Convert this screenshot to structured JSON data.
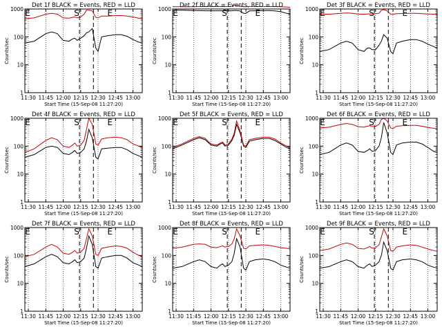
{
  "figure": {
    "background": "#ffffff",
    "events_color": "#000000",
    "lld_color": "#cc0000",
    "marker_S": "S",
    "marker_E": "E"
  },
  "chart_data": [
    {
      "type": "line",
      "title": "Det 1f BLACK = Events, RED = LLD",
      "xlabel": "Start Time (15-Sep-08 11:27:20)",
      "ylabel": "Counts/sec",
      "yscale": "log",
      "ylim": [
        1,
        1000
      ],
      "ytick_labels": [
        "1",
        "10",
        "100",
        "1000"
      ],
      "xlim": [
        "11:27",
        "13:08"
      ],
      "xtick_labels": [
        "11:30",
        "11:45",
        "12:00",
        "12:15",
        "12:30",
        "12:45",
        "13:00"
      ],
      "x": [
        "11:27",
        "11:35",
        "11:45",
        "11:50",
        "11:55",
        "12:00",
        "12:05",
        "12:08",
        "12:10",
        "12:12",
        "12:15",
        "12:18",
        "12:20",
        "12:22",
        "12:25",
        "12:28",
        "12:30",
        "12:33",
        "12:38",
        "12:45",
        "12:50",
        "12:55",
        "13:00",
        "13:05",
        "13:08"
      ],
      "series": [
        {
          "name": "BLACK = Events",
          "values": [
            60,
            70,
            130,
            150,
            130,
            75,
            70,
            85,
            90,
            75,
            90,
            110,
            140,
            150,
            200,
            40,
            30,
            100,
            110,
            120,
            120,
            105,
            80,
            65,
            60
          ]
        },
        {
          "name": "RED = LLD",
          "values": [
            450,
            480,
            650,
            700,
            650,
            480,
            470,
            500,
            520,
            480,
            520,
            650,
            900,
            900,
            850,
            500,
            480,
            560,
            560,
            580,
            580,
            560,
            520,
            470,
            450
          ]
        }
      ]
    },
    {
      "type": "line",
      "title": "Det 2f BLACK = Events, RED = LLD",
      "xlabel": "Start Time (15-Sep-08 11:27:20)",
      "ylabel": "Counts/sec",
      "yscale": "log",
      "ylim": [
        1,
        1000
      ],
      "ytick_labels": [
        "1",
        "10",
        "100",
        "1000"
      ],
      "xlim": [
        "11:27",
        "13:08"
      ],
      "xtick_labels": [
        "11:30",
        "11:45",
        "12:00",
        "12:15",
        "12:30",
        "12:45",
        "13:00"
      ],
      "x": [
        "11:27",
        "11:35",
        "11:45",
        "11:50",
        "11:55",
        "12:00",
        "12:05",
        "12:08",
        "12:10",
        "12:12",
        "12:15",
        "12:18",
        "12:20",
        "12:22",
        "12:25",
        "12:28",
        "12:30",
        "12:33",
        "12:38",
        "12:45",
        "12:50",
        "12:55",
        "13:00",
        "13:05",
        "13:08"
      ],
      "series": [
        {
          "name": "BLACK = Events",
          "values": [
            900,
            900,
            880,
            870,
            860,
            860,
            860,
            860,
            860,
            860,
            860,
            860,
            880,
            880,
            850,
            700,
            700,
            850,
            860,
            870,
            870,
            850,
            800,
            700,
            650
          ]
        },
        {
          "name": "RED = LLD",
          "values": [
            1200,
            1200,
            1210,
            1220,
            1220,
            1220,
            1220,
            1220,
            1220,
            1220,
            1230,
            1250,
            1400,
            1350,
            1250,
            1200,
            1200,
            1230,
            1230,
            1230,
            1220,
            1220,
            1200,
            1180,
            1150
          ]
        }
      ]
    },
    {
      "type": "line",
      "title": "Det 3f BLACK = Events, RED = LLD",
      "xlabel": "Start Time (15-Sep-08 11:27:20)",
      "ylabel": "Counts/sec",
      "yscale": "log",
      "ylim": [
        1,
        1000
      ],
      "ytick_labels": [
        "1",
        "10",
        "100",
        "1000"
      ],
      "xlim": [
        "11:27",
        "13:08"
      ],
      "xtick_labels": [
        "11:30",
        "11:45",
        "12:00",
        "12:15",
        "12:30",
        "12:45",
        "13:00"
      ],
      "x": [
        "11:27",
        "11:35",
        "11:45",
        "11:50",
        "11:55",
        "12:00",
        "12:05",
        "12:08",
        "12:10",
        "12:12",
        "12:15",
        "12:18",
        "12:20",
        "12:22",
        "12:25",
        "12:28",
        "12:30",
        "12:33",
        "12:38",
        "12:45",
        "12:50",
        "12:55",
        "13:00",
        "13:05",
        "13:08"
      ],
      "series": [
        {
          "name": "BLACK = Events",
          "values": [
            30,
            35,
            60,
            70,
            60,
            35,
            30,
            40,
            40,
            35,
            35,
            50,
            70,
            120,
            90,
            30,
            25,
            60,
            70,
            80,
            80,
            70,
            55,
            45,
            40
          ]
        },
        {
          "name": "RED = LLD",
          "values": [
            650,
            650,
            700,
            720,
            700,
            660,
            650,
            660,
            670,
            660,
            680,
            700,
            900,
            950,
            850,
            650,
            640,
            680,
            690,
            700,
            700,
            680,
            660,
            650,
            640
          ]
        }
      ]
    },
    {
      "type": "line",
      "title": "Det 4f BLACK = Events, RED = LLD",
      "xlabel": "Start Time (15-Sep-08 11:27:20)",
      "ylabel": "Counts/sec",
      "yscale": "log",
      "ylim": [
        1,
        1000
      ],
      "ytick_labels": [
        "1",
        "10",
        "100",
        "1000"
      ],
      "xlim": [
        "11:27",
        "13:08"
      ],
      "xtick_labels": [
        "11:30",
        "11:45",
        "12:00",
        "12:15",
        "12:30",
        "12:45",
        "13:00"
      ],
      "x": [
        "11:27",
        "11:35",
        "11:45",
        "11:50",
        "11:55",
        "12:00",
        "12:05",
        "12:08",
        "12:10",
        "12:12",
        "12:15",
        "12:18",
        "12:20",
        "12:22",
        "12:25",
        "12:28",
        "12:30",
        "12:33",
        "12:38",
        "12:45",
        "12:50",
        "12:55",
        "13:00",
        "13:05",
        "13:08"
      ],
      "series": [
        {
          "name": "BLACK = Events",
          "values": [
            40,
            50,
            90,
            100,
            90,
            55,
            50,
            60,
            70,
            55,
            60,
            80,
            150,
            400,
            200,
            40,
            35,
            80,
            85,
            90,
            90,
            75,
            55,
            45,
            40
          ]
        },
        {
          "name": "RED = LLD",
          "values": [
            60,
            80,
            160,
            200,
            170,
            100,
            90,
            110,
            130,
            100,
            110,
            160,
            400,
            1000,
            600,
            120,
            110,
            180,
            200,
            210,
            200,
            170,
            120,
            100,
            90
          ]
        }
      ]
    },
    {
      "type": "line",
      "title": "Det 5f BLACK = Events, RED = LLD",
      "xlabel": "Start Time (15-Sep-08 11:27:20)",
      "ylabel": "Counts/sec",
      "yscale": "log",
      "ylim": [
        1,
        1000
      ],
      "ytick_labels": [
        "1",
        "10",
        "100",
        "1000"
      ],
      "xlim": [
        "11:27",
        "13:08"
      ],
      "xtick_labels": [
        "11:30",
        "11:45",
        "12:00",
        "12:15",
        "12:30",
        "12:45",
        "13:00"
      ],
      "x": [
        "11:27",
        "11:35",
        "11:45",
        "11:50",
        "11:55",
        "12:00",
        "12:05",
        "12:08",
        "12:10",
        "12:12",
        "12:15",
        "12:18",
        "12:20",
        "12:22",
        "12:25",
        "12:28",
        "12:30",
        "12:33",
        "12:38",
        "12:45",
        "12:50",
        "12:55",
        "13:00",
        "13:05",
        "13:08"
      ],
      "series": [
        {
          "name": "BLACK = Events",
          "values": [
            80,
            110,
            170,
            200,
            170,
            110,
            100,
            120,
            130,
            100,
            110,
            160,
            250,
            600,
            300,
            100,
            90,
            150,
            170,
            190,
            190,
            160,
            120,
            90,
            80
          ]
        },
        {
          "name": "RED = LLD",
          "values": [
            90,
            120,
            190,
            220,
            190,
            120,
            110,
            130,
            140,
            110,
            120,
            180,
            300,
            800,
            350,
            110,
            100,
            170,
            190,
            210,
            210,
            180,
            130,
            100,
            90
          ]
        }
      ]
    },
    {
      "type": "line",
      "title": "Det 6f BLACK = Events, RED = LLD",
      "xlabel": "Start Time (15-Sep-08 11:27:20)",
      "ylabel": "Counts/sec",
      "yscale": "log",
      "ylim": [
        1,
        1000
      ],
      "ytick_labels": [
        "1",
        "10",
        "100",
        "1000"
      ],
      "xlim": [
        "11:27",
        "13:08"
      ],
      "xtick_labels": [
        "11:30",
        "11:45",
        "12:00",
        "12:15",
        "12:30",
        "12:45",
        "13:00"
      ],
      "x": [
        "11:27",
        "11:35",
        "11:45",
        "11:50",
        "11:55",
        "12:00",
        "12:05",
        "12:08",
        "12:10",
        "12:12",
        "12:15",
        "12:18",
        "12:20",
        "12:22",
        "12:25",
        "12:28",
        "12:30",
        "12:33",
        "12:38",
        "12:45",
        "12:50",
        "12:55",
        "13:00",
        "13:05",
        "13:08"
      ],
      "series": [
        {
          "name": "BLACK = Events",
          "values": [
            50,
            60,
            110,
            130,
            110,
            65,
            60,
            70,
            80,
            65,
            70,
            100,
            200,
            700,
            300,
            60,
            50,
            110,
            130,
            140,
            140,
            120,
            90,
            65,
            60
          ]
        },
        {
          "name": "RED = LLD",
          "values": [
            450,
            480,
            600,
            650,
            600,
            500,
            480,
            520,
            550,
            500,
            520,
            600,
            900,
            1000,
            800,
            450,
            430,
            520,
            540,
            560,
            560,
            520,
            470,
            440,
            420
          ]
        }
      ]
    },
    {
      "type": "line",
      "title": "Det 7f BLACK = Events, RED = LLD",
      "xlabel": "Start Time (15-Sep-08 11:27:20)",
      "ylabel": "Counts/sec",
      "yscale": "log",
      "ylim": [
        1,
        1000
      ],
      "ytick_labels": [
        "1",
        "10",
        "100",
        "1000"
      ],
      "xlim": [
        "11:27",
        "13:08"
      ],
      "xtick_labels": [
        "11:30",
        "11:45",
        "12:00",
        "12:15",
        "12:30",
        "12:45",
        "13:00"
      ],
      "x": [
        "11:27",
        "11:35",
        "11:45",
        "11:50",
        "11:55",
        "12:00",
        "12:05",
        "12:08",
        "12:10",
        "12:12",
        "12:15",
        "12:18",
        "12:20",
        "12:22",
        "12:25",
        "12:28",
        "12:30",
        "12:33",
        "12:38",
        "12:45",
        "12:50",
        "12:55",
        "13:00",
        "13:05",
        "13:08"
      ],
      "series": [
        {
          "name": "BLACK = Events",
          "values": [
            40,
            50,
            90,
            110,
            90,
            55,
            50,
            60,
            70,
            55,
            60,
            80,
            180,
            500,
            250,
            40,
            35,
            80,
            90,
            100,
            100,
            80,
            55,
            45,
            40
          ]
        },
        {
          "name": "RED = LLD",
          "values": [
            90,
            110,
            200,
            250,
            200,
            120,
            110,
            130,
            150,
            120,
            130,
            180,
            400,
            900,
            500,
            110,
            100,
            180,
            200,
            220,
            210,
            180,
            130,
            100,
            90
          ]
        }
      ]
    },
    {
      "type": "line",
      "title": "Det 8f BLACK = Events, RED = LLD",
      "xlabel": "Start Time (15-Sep-08 11:27:20)",
      "ylabel": "Counts/sec",
      "yscale": "log",
      "ylim": [
        1,
        1000
      ],
      "ytick_labels": [
        "1",
        "10",
        "100",
        "1000"
      ],
      "xlim": [
        "11:27",
        "13:08"
      ],
      "xtick_labels": [
        "11:30",
        "11:45",
        "12:00",
        "12:15",
        "12:30",
        "12:45",
        "13:00"
      ],
      "x": [
        "11:27",
        "11:35",
        "11:45",
        "11:50",
        "11:55",
        "12:00",
        "12:05",
        "12:08",
        "12:10",
        "12:12",
        "12:15",
        "12:18",
        "12:20",
        "12:22",
        "12:25",
        "12:28",
        "12:30",
        "12:33",
        "12:38",
        "12:45",
        "12:50",
        "12:55",
        "13:00",
        "13:05",
        "13:08"
      ],
      "series": [
        {
          "name": "BLACK = Events",
          "values": [
            35,
            40,
            60,
            70,
            60,
            40,
            35,
            45,
            50,
            40,
            45,
            60,
            120,
            400,
            200,
            35,
            30,
            60,
            70,
            75,
            70,
            60,
            45,
            38,
            35
          ]
        },
        {
          "name": "RED = LLD",
          "values": [
            180,
            200,
            250,
            260,
            250,
            200,
            190,
            210,
            220,
            200,
            210,
            260,
            400,
            900,
            500,
            180,
            170,
            220,
            230,
            240,
            230,
            210,
            190,
            180,
            170
          ]
        }
      ]
    },
    {
      "type": "line",
      "title": "Det 9f BLACK = Events, RED = LLD",
      "xlabel": "Start Time (15-Sep-08 11:27:20)",
      "ylabel": "Counts/sec",
      "yscale": "log",
      "ylim": [
        1,
        1000
      ],
      "ytick_labels": [
        "1",
        "10",
        "100",
        "1000"
      ],
      "xlim": [
        "11:27",
        "13:08"
      ],
      "xtick_labels": [
        "11:30",
        "11:45",
        "12:00",
        "12:15",
        "12:30",
        "12:45",
        "13:00"
      ],
      "x": [
        "11:27",
        "11:35",
        "11:45",
        "11:50",
        "11:55",
        "12:00",
        "12:05",
        "12:08",
        "12:10",
        "12:12",
        "12:15",
        "12:18",
        "12:20",
        "12:22",
        "12:25",
        "12:28",
        "12:30",
        "12:33",
        "12:38",
        "12:45",
        "12:50",
        "12:55",
        "13:00",
        "13:05",
        "13:08"
      ],
      "series": [
        {
          "name": "BLACK = Events",
          "values": [
            35,
            40,
            60,
            70,
            60,
            40,
            35,
            45,
            50,
            40,
            45,
            60,
            100,
            300,
            150,
            35,
            30,
            60,
            70,
            75,
            70,
            60,
            45,
            38,
            35
          ]
        },
        {
          "name": "RED = LLD",
          "values": [
            150,
            170,
            250,
            280,
            250,
            180,
            170,
            190,
            210,
            180,
            190,
            240,
            450,
            900,
            500,
            150,
            140,
            200,
            220,
            240,
            230,
            200,
            170,
            150,
            140
          ]
        }
      ]
    }
  ]
}
